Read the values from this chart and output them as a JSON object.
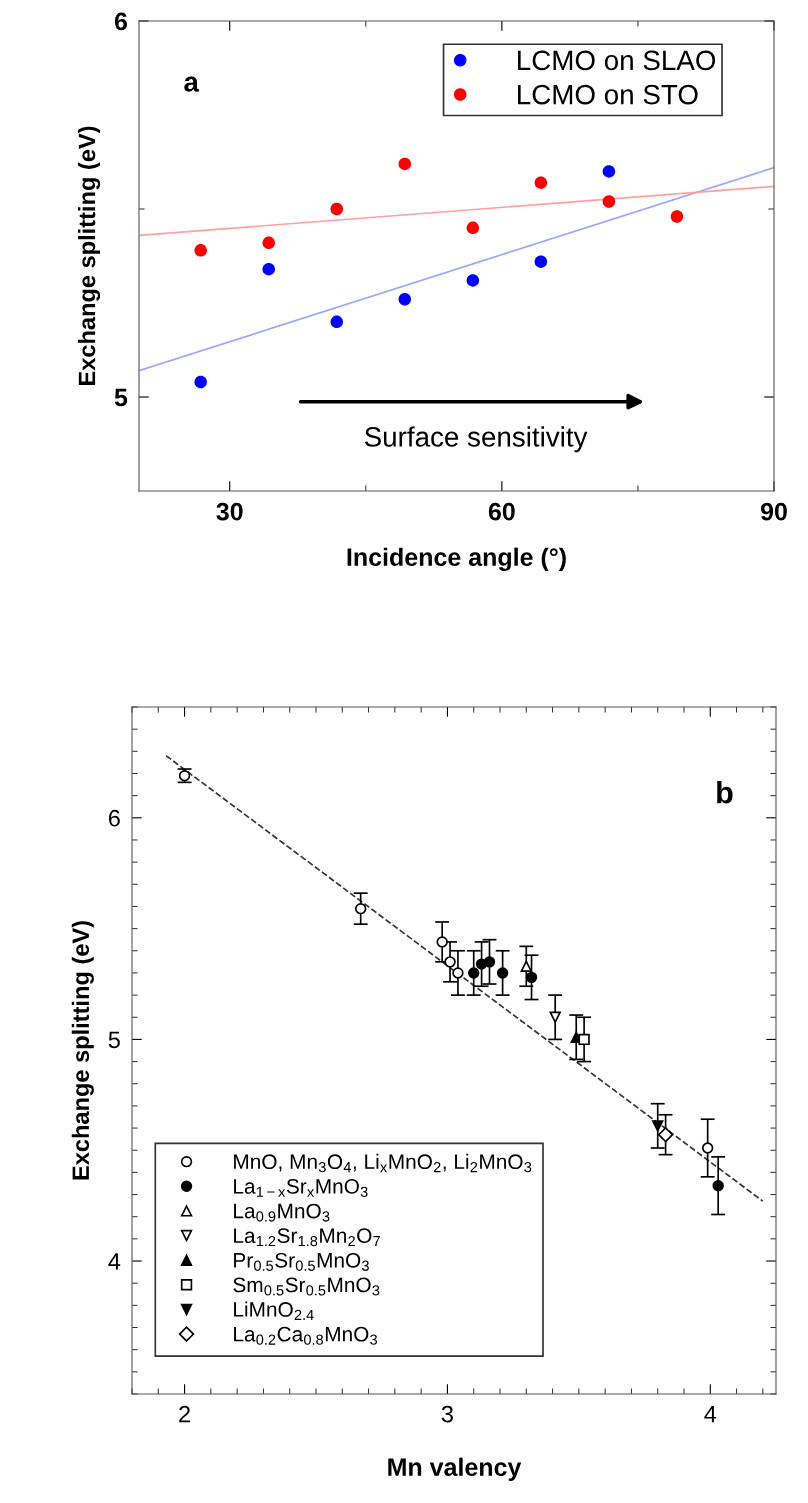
{
  "chart_data": [
    {
      "type": "scatter",
      "xlabel": "Incidence angle (°)",
      "ylabel": "Exchange splitting (eV)",
      "xlim": [
        20,
        90
      ],
      "xticks": [
        30,
        60,
        90
      ],
      "ylim": [
        4.75,
        6
      ],
      "yticks": [
        5,
        6
      ],
      "grid": false,
      "legend": "top right",
      "annotations": [
        "a",
        "Surface sensitivity"
      ],
      "series": [
        {
          "name": "LCMO on SLAO",
          "color": "#0000ff",
          "marker": "circle",
          "x": [
            26.8,
            34.3,
            41.8,
            49.3,
            56.8,
            64.3,
            71.8
          ],
          "values": [
            5.04,
            5.34,
            5.2,
            5.26,
            5.31,
            5.36,
            5.6
          ]
        },
        {
          "name": "LCMO on STO",
          "color": "#ff0000",
          "marker": "circle",
          "x": [
            26.8,
            34.3,
            41.8,
            49.3,
            56.8,
            64.3,
            71.8,
            79.3
          ],
          "values": [
            5.39,
            5.41,
            5.5,
            5.62,
            5.45,
            5.57,
            5.52,
            5.48
          ]
        },
        {
          "type": "line",
          "color": "#a0a0ff",
          "marker": "none",
          "x": [
            20,
            90
          ],
          "values": [
            5.07,
            5.61
          ]
        },
        {
          "type": "line",
          "color": "#ffa0a0",
          "marker": "none",
          "x": [
            20,
            90
          ],
          "values": [
            5.43,
            5.56
          ]
        }
      ]
    },
    {
      "type": "scatter",
      "xlabel": "Mn valency",
      "ylabel": "Exchange splitting (eV)",
      "xlim": [
        1.8,
        4.25
      ],
      "xticks": [
        2,
        3,
        4
      ],
      "ylim": [
        3.4,
        6.5
      ],
      "yticks": [
        4,
        5,
        6
      ],
      "grid": false,
      "legend": "bottom left",
      "annotations": [
        "b"
      ],
      "series": [
        {
          "name": "MnO, Mn$_{3}$O$_{4}$, Li$_{x}$MnO$_{2}$, Li$_{2}$MnO$_{3}$",
          "color": "#ffffff",
          "marker": "circle",
          "x": [
            2.0,
            2.67,
            2.98,
            3.01,
            3.04,
            3.99
          ],
          "values": [
            6.19,
            5.59,
            5.44,
            5.35,
            5.3,
            4.51
          ],
          "errors": [
            0.03,
            0.07,
            0.09,
            0.09,
            0.1,
            0.13
          ]
        },
        {
          "name": "La$_{1−x}$Sr$_{x}$MnO$_{3}$",
          "color": "#000000",
          "marker": "circle",
          "x": [
            3.1,
            3.13,
            3.16,
            3.21,
            3.32,
            4.03
          ],
          "values": [
            5.3,
            5.34,
            5.35,
            5.3,
            5.28,
            4.34
          ],
          "errors": [
            0.1,
            0.1,
            0.1,
            0.1,
            0.1,
            0.13
          ]
        },
        {
          "name": "La$_{0.9}$MnO$_{3}$",
          "color": "#ffffff",
          "marker": "triangle",
          "x": [
            3.3
          ],
          "values": [
            5.33
          ],
          "errors": [
            0.09
          ]
        },
        {
          "name": "La$_{1.2}$Sr$_{1.8}$Mn$_{2}$O$_{7}$",
          "color": "#ffffff",
          "marker": "triangle_down",
          "x": [
            3.41
          ],
          "values": [
            5.1
          ],
          "errors": [
            0.1
          ]
        },
        {
          "name": "Pr$_{0.5}$Sr$_{0.5}$MnO$_{3}$",
          "color": "#000000",
          "marker": "triangle",
          "x": [
            3.49
          ],
          "values": [
            5.01
          ],
          "errors": [
            0.1
          ]
        },
        {
          "name": "Sm$_{0.5}$Sr$_{0.5}$MnO$_{3}$",
          "color": "#ffffff",
          "marker": "square",
          "x": [
            3.52
          ],
          "values": [
            5.0
          ],
          "errors": [
            0.1
          ]
        },
        {
          "name": "LiMnO$_{2.4}$",
          "color": "#000000",
          "marker": "triangle_down",
          "x": [
            3.8
          ],
          "values": [
            4.61
          ],
          "errors": [
            0.1
          ]
        },
        {
          "name": "La$_{0.2}$Ca$_{0.8}$MnO$_{3}$",
          "color": "#ffffff",
          "marker": "diamond",
          "x": [
            3.83
          ],
          "values": [
            4.57
          ],
          "errors": [
            0.09
          ]
        },
        {
          "type": "line",
          "color": "#333333",
          "line_style": "dashed",
          "marker": "none",
          "x": [
            1.93,
            4.2
          ],
          "values": [
            6.28,
            4.27
          ]
        }
      ]
    }
  ]
}
